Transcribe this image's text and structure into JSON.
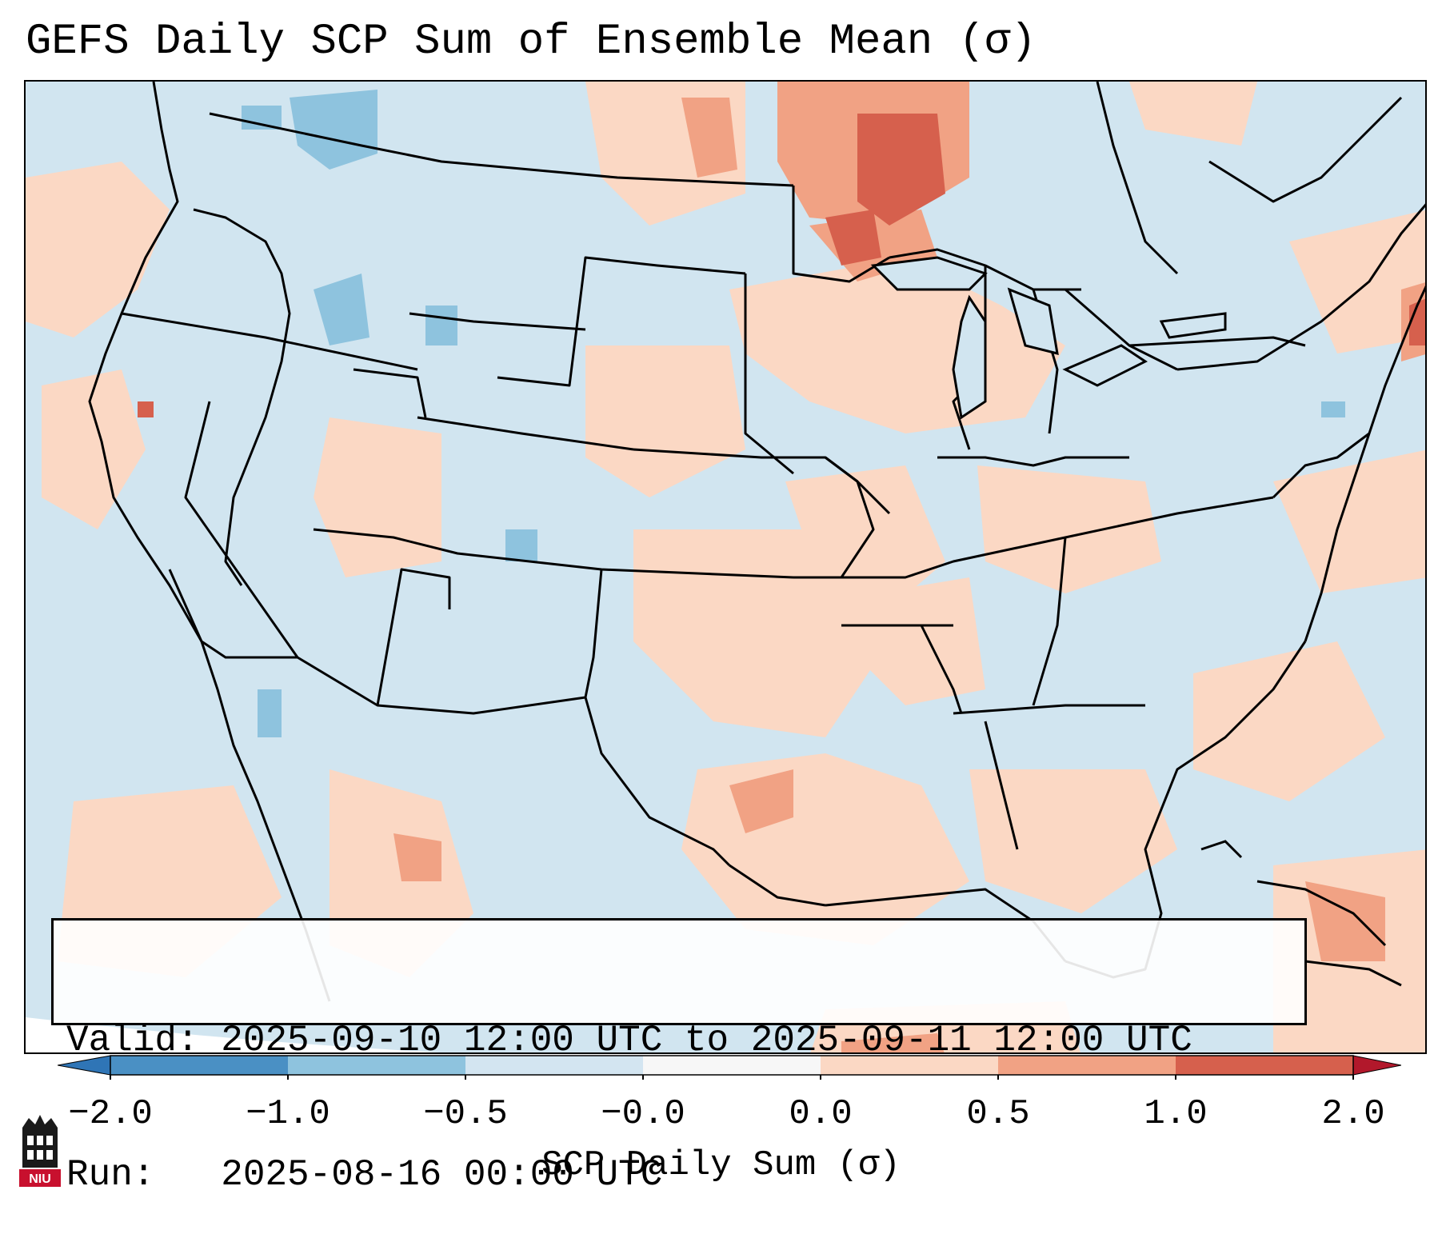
{
  "title": "GEFS Daily SCP Sum of Ensemble Mean (σ)",
  "info": {
    "valid_line": "Valid: 2025-09-10 12:00 UTC to 2025-09-11 12:00 UTC",
    "run_line": "Run:   2025-08-16 00:00 UTC"
  },
  "colorbar": {
    "label": "SCP Daily Sum (σ)",
    "ticks": [
      "−2.0",
      "−1.0",
      "−0.5",
      "−0.0",
      "0.0",
      "0.5",
      "1.0",
      "2.0"
    ],
    "colors": [
      "#4a90c4",
      "#8ec3de",
      "#d3e5f1",
      "#f7f7f7",
      "#fbd8c4",
      "#f1a284",
      "#d6604d"
    ],
    "extend_low_color": "#2f75b6",
    "extend_high_color": "#b2182b"
  },
  "map": {
    "background_color": "#d1e5f0",
    "ocean_outside_color": "#ffffff",
    "border_color": "#000000"
  },
  "logo": {
    "text": "NIU",
    "color": "#c8102e"
  },
  "icons": {
    "logo": "niu-logo-icon"
  }
}
